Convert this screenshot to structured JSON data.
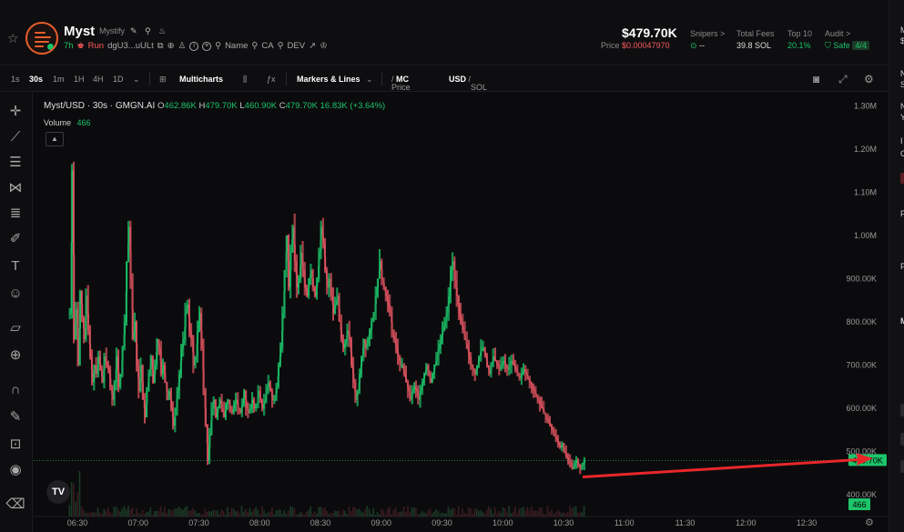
{
  "token": {
    "symbol": "Myst",
    "name": "Mystify",
    "age": "7h",
    "status": "Run",
    "address": "dgU3...uULt",
    "links": [
      "Name",
      "CA",
      "DEV"
    ]
  },
  "price": {
    "market_cap": "$479.70K",
    "label": "Price",
    "value": "$0.00047970"
  },
  "stats": [
    {
      "label": "Snipers >",
      "value": "--"
    },
    {
      "label": "Total Fees",
      "value": "39.8 SOL"
    },
    {
      "label": "Top 10",
      "value": "20.1%"
    },
    {
      "label": "Audit >",
      "value": "Safe",
      "badge": "4/4"
    }
  ],
  "toolbar": {
    "intervals": [
      "1s",
      "30s",
      "1m",
      "1H",
      "4H",
      "1D"
    ],
    "active_interval": "30s",
    "multicharts": "Multicharts",
    "markers": "Markers & Lines",
    "price_label": "Price",
    "mc_label": "MC",
    "usd_label": "USD",
    "sol_label": "SOL"
  },
  "chart_data": {
    "type": "candlestick",
    "title": "Myst/USD · 30s · GMGN.AI",
    "ohlc": {
      "O": "462.86K",
      "H": "479.70K",
      "L": "460.90K",
      "C": "479.70K",
      "change": "16.83K (+3.64%)"
    },
    "volume_label": "Volume",
    "volume_value": "466",
    "y_ticks": [
      "1.30M",
      "1.20M",
      "1.10M",
      "1.00M",
      "900.00K",
      "800.00K",
      "700.00K",
      "600.00K",
      "500.00K",
      "400.00K"
    ],
    "y_range": [
      350000,
      1330000
    ],
    "x_ticks": [
      "06:30",
      "07:00",
      "07:30",
      "08:00",
      "08:30",
      "09:00",
      "09:30",
      "10:00",
      "10:30",
      "11:00",
      "11:30",
      "12:00",
      "12:30"
    ],
    "last_price": 479700,
    "last_price_label": "479.70K",
    "last_volume_label": "466",
    "series": [
      {
        "name": "price",
        "points": [
          [
            "06:26",
            820000
          ],
          [
            "06:27",
            1150000
          ],
          [
            "06:28",
            760000
          ],
          [
            "06:29",
            830000
          ],
          [
            "06:30",
            700000
          ],
          [
            "06:31",
            870000
          ],
          [
            "06:32",
            810000
          ],
          [
            "06:33",
            760000
          ],
          [
            "06:34",
            860000
          ],
          [
            "06:35",
            780000
          ],
          [
            "06:36",
            720000
          ],
          [
            "06:37",
            660000
          ],
          [
            "06:38",
            700000
          ],
          [
            "06:39",
            680000
          ],
          [
            "06:40",
            720000
          ],
          [
            "06:41",
            690000
          ],
          [
            "06:42",
            660000
          ],
          [
            "06:43",
            720000
          ],
          [
            "06:44",
            700000
          ],
          [
            "06:45",
            690000
          ],
          [
            "06:46",
            650000
          ],
          [
            "06:47",
            620000
          ],
          [
            "06:48",
            660000
          ],
          [
            "06:49",
            720000
          ],
          [
            "06:50",
            650000
          ],
          [
            "06:51",
            680000
          ],
          [
            "06:52",
            740000
          ],
          [
            "06:53",
            800000
          ],
          [
            "06:54",
            940000
          ],
          [
            "06:55",
            1020000
          ],
          [
            "06:56",
            900000
          ],
          [
            "06:57",
            760000
          ],
          [
            "06:58",
            800000
          ],
          [
            "06:59",
            700000
          ],
          [
            "07:00",
            640000
          ],
          [
            "07:01",
            700000
          ],
          [
            "07:02",
            620000
          ],
          [
            "07:03",
            580000
          ],
          [
            "07:04",
            640000
          ],
          [
            "07:05",
            680000
          ],
          [
            "07:06",
            720000
          ],
          [
            "07:07",
            660000
          ],
          [
            "07:08",
            700000
          ],
          [
            "07:09",
            760000
          ],
          [
            "07:10",
            740000
          ],
          [
            "07:11",
            680000
          ],
          [
            "07:12",
            700000
          ],
          [
            "07:13",
            660000
          ],
          [
            "07:14",
            620000
          ],
          [
            "07:15",
            640000
          ],
          [
            "07:16",
            600000
          ],
          [
            "07:17",
            560000
          ],
          [
            "07:18",
            600000
          ],
          [
            "07:19",
            640000
          ],
          [
            "07:20",
            680000
          ],
          [
            "07:21",
            740000
          ],
          [
            "07:22",
            760000
          ],
          [
            "07:23",
            820000
          ],
          [
            "07:24",
            840000
          ],
          [
            "07:25",
            780000
          ],
          [
            "07:26",
            760000
          ],
          [
            "07:27",
            700000
          ],
          [
            "07:28",
            720000
          ],
          [
            "07:29",
            780000
          ],
          [
            "07:30",
            820000
          ],
          [
            "07:31",
            740000
          ],
          [
            "07:32",
            640000
          ],
          [
            "07:33",
            560000
          ],
          [
            "07:34",
            480000
          ],
          [
            "07:35",
            540000
          ],
          [
            "07:36",
            600000
          ],
          [
            "07:37",
            620000
          ],
          [
            "07:38",
            580000
          ],
          [
            "07:39",
            600000
          ],
          [
            "07:40",
            620000
          ],
          [
            "07:41",
            600000
          ],
          [
            "07:42",
            580000
          ],
          [
            "07:43",
            610000
          ],
          [
            "07:44",
            620000
          ],
          [
            "07:45",
            600000
          ],
          [
            "07:46",
            590000
          ],
          [
            "07:47",
            610000
          ],
          [
            "07:48",
            620000
          ],
          [
            "07:49",
            600000
          ],
          [
            "07:50",
            590000
          ],
          [
            "07:51",
            610000
          ],
          [
            "07:52",
            640000
          ],
          [
            "07:53",
            600000
          ],
          [
            "07:54",
            590000
          ],
          [
            "07:55",
            600000
          ],
          [
            "07:56",
            620000
          ],
          [
            "07:57",
            600000
          ],
          [
            "07:58",
            610000
          ],
          [
            "07:59",
            640000
          ],
          [
            "08:00",
            620000
          ],
          [
            "08:01",
            600000
          ],
          [
            "08:02",
            620000
          ],
          [
            "08:03",
            640000
          ],
          [
            "08:04",
            660000
          ],
          [
            "08:05",
            640000
          ],
          [
            "08:06",
            620000
          ],
          [
            "08:07",
            620000
          ],
          [
            "08:08",
            650000
          ],
          [
            "08:09",
            700000
          ],
          [
            "08:10",
            740000
          ],
          [
            "08:11",
            820000
          ],
          [
            "08:12",
            920000
          ],
          [
            "08:13",
            1000000
          ],
          [
            "08:14",
            880000
          ],
          [
            "08:15",
            960000
          ],
          [
            "08:16",
            1020000
          ],
          [
            "08:17",
            940000
          ],
          [
            "08:18",
            880000
          ],
          [
            "08:19",
            900000
          ],
          [
            "08:20",
            960000
          ],
          [
            "08:21",
            920000
          ],
          [
            "08:22",
            880000
          ],
          [
            "08:23",
            860000
          ],
          [
            "08:24",
            900000
          ],
          [
            "08:25",
            920000
          ],
          [
            "08:26",
            880000
          ],
          [
            "08:27",
            860000
          ],
          [
            "08:28",
            900000
          ],
          [
            "08:29",
            960000
          ],
          [
            "08:30",
            1020000
          ],
          [
            "08:31",
            980000
          ],
          [
            "08:32",
            920000
          ],
          [
            "08:33",
            880000
          ],
          [
            "08:34",
            900000
          ],
          [
            "08:35",
            860000
          ],
          [
            "08:36",
            820000
          ],
          [
            "08:37",
            840000
          ],
          [
            "08:38",
            860000
          ],
          [
            "08:39",
            800000
          ],
          [
            "08:40",
            760000
          ],
          [
            "08:41",
            740000
          ],
          [
            "08:42",
            760000
          ],
          [
            "08:43",
            780000
          ],
          [
            "08:44",
            760000
          ],
          [
            "08:45",
            700000
          ],
          [
            "08:46",
            660000
          ],
          [
            "08:47",
            620000
          ],
          [
            "08:48",
            640000
          ],
          [
            "08:49",
            680000
          ],
          [
            "08:50",
            720000
          ],
          [
            "08:51",
            760000
          ],
          [
            "08:52",
            740000
          ],
          [
            "08:53",
            760000
          ],
          [
            "08:54",
            780000
          ],
          [
            "08:55",
            800000
          ],
          [
            "08:56",
            820000
          ],
          [
            "08:57",
            860000
          ],
          [
            "08:58",
            900000
          ],
          [
            "08:59",
            940000
          ],
          [
            "09:00",
            900000
          ],
          [
            "09:01",
            880000
          ],
          [
            "09:02",
            860000
          ],
          [
            "09:03",
            840000
          ],
          [
            "09:04",
            820000
          ],
          [
            "09:05",
            780000
          ],
          [
            "09:06",
            760000
          ],
          [
            "09:07",
            740000
          ],
          [
            "09:08",
            720000
          ],
          [
            "09:09",
            700000
          ],
          [
            "09:10",
            700000
          ],
          [
            "09:11",
            680000
          ],
          [
            "09:12",
            660000
          ],
          [
            "09:13",
            640000
          ],
          [
            "09:14",
            620000
          ],
          [
            "09:15",
            640000
          ],
          [
            "09:16",
            650000
          ],
          [
            "09:17",
            640000
          ],
          [
            "09:18",
            620000
          ],
          [
            "09:19",
            640000
          ],
          [
            "09:20",
            660000
          ],
          [
            "09:21",
            680000
          ],
          [
            "09:22",
            700000
          ],
          [
            "09:23",
            680000
          ],
          [
            "09:24",
            660000
          ],
          [
            "09:25",
            680000
          ],
          [
            "09:26",
            700000
          ],
          [
            "09:27",
            720000
          ],
          [
            "09:28",
            740000
          ],
          [
            "09:29",
            760000
          ],
          [
            "09:30",
            780000
          ],
          [
            "09:31",
            800000
          ],
          [
            "09:32",
            820000
          ],
          [
            "09:33",
            860000
          ],
          [
            "09:34",
            920000
          ],
          [
            "09:35",
            940000
          ],
          [
            "09:36",
            900000
          ],
          [
            "09:37",
            860000
          ],
          [
            "09:38",
            820000
          ],
          [
            "09:39",
            800000
          ],
          [
            "09:40",
            780000
          ],
          [
            "09:41",
            760000
          ],
          [
            "09:42",
            740000
          ],
          [
            "09:43",
            720000
          ],
          [
            "09:44",
            700000
          ],
          [
            "09:45",
            690000
          ],
          [
            "09:46",
            680000
          ],
          [
            "09:47",
            700000
          ],
          [
            "09:48",
            720000
          ],
          [
            "09:49",
            740000
          ],
          [
            "09:50",
            740000
          ],
          [
            "09:51",
            720000
          ],
          [
            "09:52",
            700000
          ],
          [
            "09:53",
            680000
          ],
          [
            "09:54",
            700000
          ],
          [
            "09:55",
            720000
          ],
          [
            "09:56",
            710000
          ],
          [
            "09:57",
            700000
          ],
          [
            "09:58",
            690000
          ],
          [
            "09:59",
            700000
          ],
          [
            "10:00",
            710000
          ],
          [
            "10:01",
            700000
          ],
          [
            "10:02",
            690000
          ],
          [
            "10:03",
            700000
          ],
          [
            "10:04",
            710000
          ],
          [
            "10:05",
            700000
          ],
          [
            "10:06",
            690000
          ],
          [
            "10:07",
            680000
          ],
          [
            "10:08",
            670000
          ],
          [
            "10:09",
            680000
          ],
          [
            "10:10",
            690000
          ],
          [
            "10:11",
            680000
          ],
          [
            "10:12",
            670000
          ],
          [
            "10:13",
            660000
          ],
          [
            "10:14",
            650000
          ],
          [
            "10:15",
            640000
          ],
          [
            "10:16",
            630000
          ],
          [
            "10:17",
            620000
          ],
          [
            "10:18",
            610000
          ],
          [
            "10:19",
            600000
          ],
          [
            "10:20",
            590000
          ],
          [
            "10:21",
            580000
          ],
          [
            "10:22",
            570000
          ],
          [
            "10:23",
            560000
          ],
          [
            "10:24",
            550000
          ],
          [
            "10:25",
            540000
          ],
          [
            "10:26",
            530000
          ],
          [
            "10:27",
            520000
          ],
          [
            "10:28",
            510000
          ],
          [
            "10:29",
            520000
          ],
          [
            "10:30",
            500000
          ],
          [
            "10:31",
            490000
          ],
          [
            "10:32",
            480000
          ],
          [
            "10:33",
            470000
          ],
          [
            "10:34",
            460000
          ],
          [
            "10:35",
            470000
          ],
          [
            "10:36",
            480000
          ],
          [
            "10:37",
            470000
          ],
          [
            "10:38",
            460000
          ],
          [
            "10:39",
            470000
          ],
          [
            "10:40",
            480000
          ]
        ]
      }
    ]
  },
  "right_panel_hints": [
    "M",
    "$",
    "N",
    "S",
    "N",
    "Y",
    "I",
    "C",
    "P",
    "P",
    "M"
  ]
}
